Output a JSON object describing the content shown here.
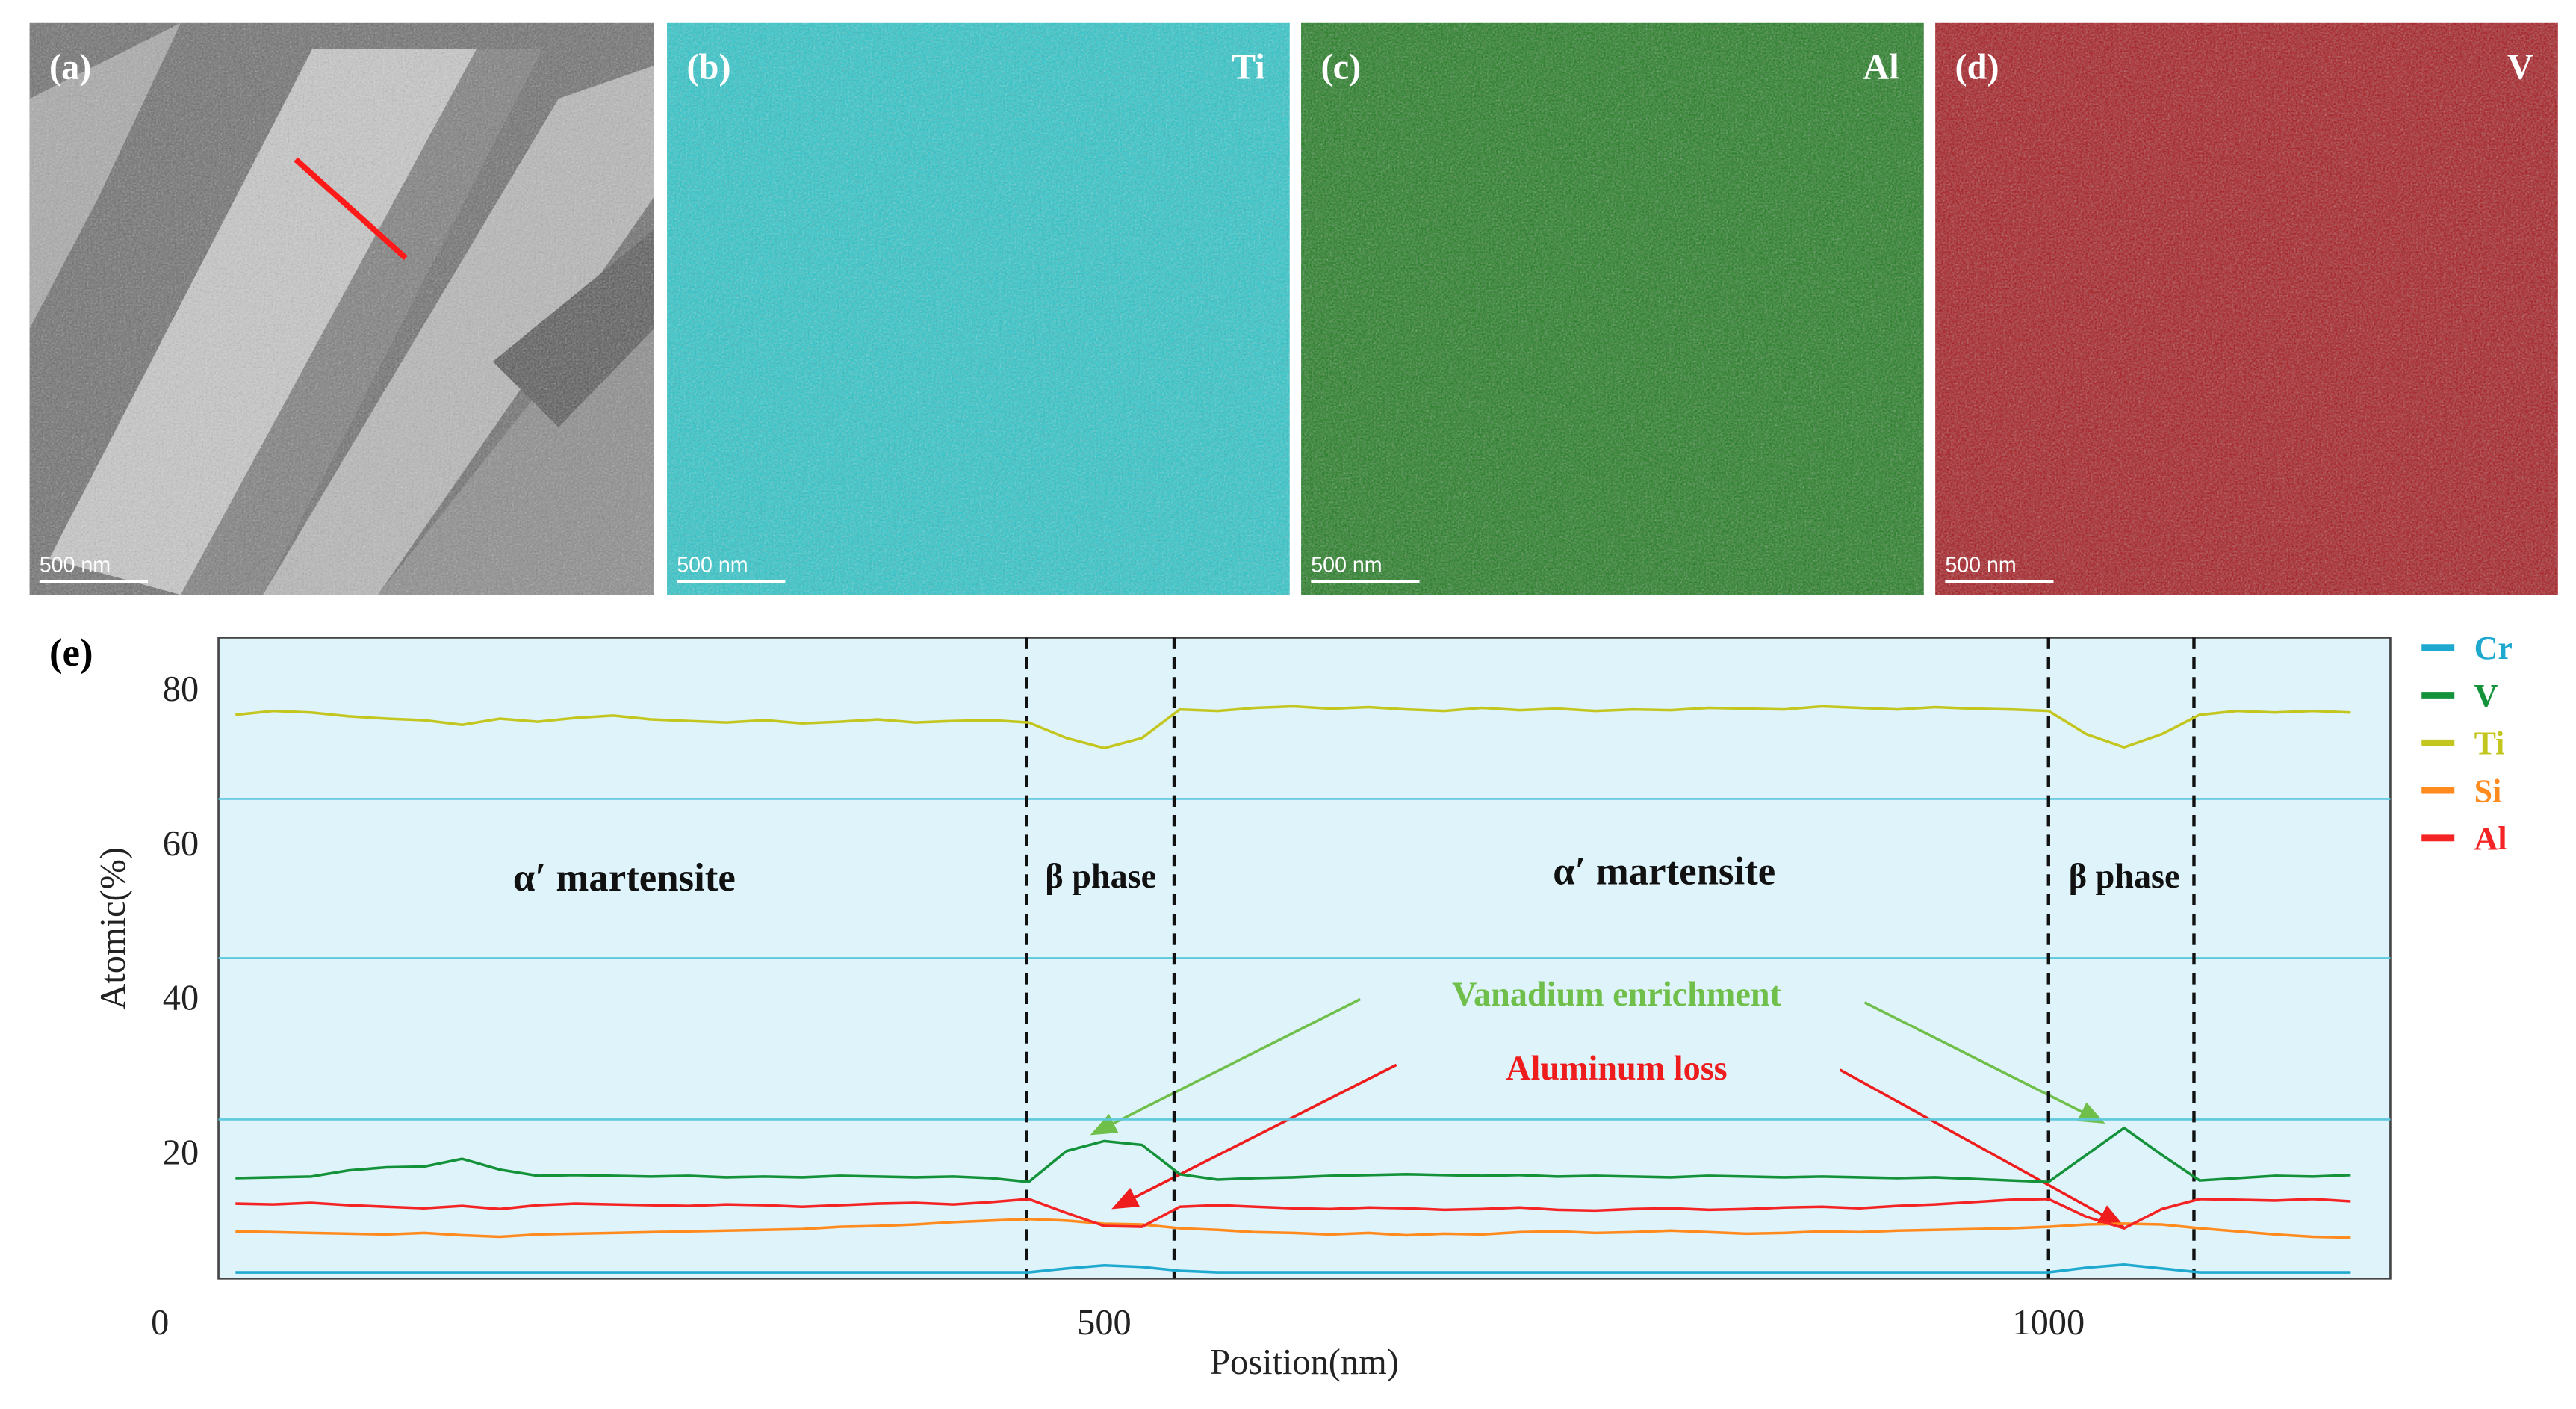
{
  "panels": [
    {
      "label": "(a)",
      "scale_bar": "500 nm"
    },
    {
      "label": "(b)",
      "element": "Ti",
      "scale_bar": "500 nm"
    },
    {
      "label": "(c)",
      "element": "Al",
      "scale_bar": "500 nm"
    },
    {
      "label": "(d)",
      "element": "V",
      "scale_bar": "500 nm"
    }
  ],
  "chart_data": {
    "type": "line",
    "panel_label": "(e)",
    "xlabel": "Position(nm)",
    "ylabel": "Atomic(%)",
    "xlim": [
      31,
      1181
    ],
    "ylim": [
      3.5,
      86.5
    ],
    "xticks": [
      0,
      500,
      1000
    ],
    "yticks": [
      20,
      40,
      60,
      80
    ],
    "grid_lines": [
      65.6,
      45,
      24.1
    ],
    "phase_boundaries": [
      459,
      537,
      1000,
      1077
    ],
    "legend": "right",
    "annotations": [
      {
        "text": "α′ martensite",
        "color": "#111111"
      },
      {
        "text": "β phase",
        "color": "#111111"
      },
      {
        "text": "α′ martensite",
        "color": "#111111"
      },
      {
        "text": "β phase",
        "color": "#111111"
      },
      {
        "text": "Vanadium enrichment",
        "color": "#6fbf4a"
      },
      {
        "text": "Aluminum loss",
        "color": "#ee1c1c"
      }
    ],
    "x": [
      40,
      60,
      80,
      100,
      120,
      140,
      160,
      180,
      200,
      220,
      240,
      260,
      280,
      300,
      320,
      340,
      360,
      380,
      400,
      420,
      440,
      460,
      480,
      500,
      520,
      540,
      560,
      580,
      600,
      620,
      640,
      660,
      680,
      700,
      720,
      740,
      760,
      780,
      800,
      820,
      840,
      860,
      880,
      900,
      920,
      940,
      960,
      980,
      1000,
      1020,
      1040,
      1060,
      1080,
      1100,
      1120,
      1140,
      1160
    ],
    "series": [
      {
        "name": "Cr",
        "color": "#1fa9cf",
        "values": [
          4.3,
          4.3,
          4.3,
          4.3,
          4.3,
          4.3,
          4.3,
          4.3,
          4.3,
          4.3,
          4.3,
          4.3,
          4.3,
          4.3,
          4.3,
          4.3,
          4.3,
          4.3,
          4.3,
          4.3,
          4.3,
          4.3,
          4.8,
          5.2,
          5.0,
          4.5,
          4.3,
          4.3,
          4.3,
          4.3,
          4.3,
          4.3,
          4.3,
          4.3,
          4.3,
          4.3,
          4.3,
          4.3,
          4.3,
          4.3,
          4.3,
          4.3,
          4.3,
          4.3,
          4.3,
          4.3,
          4.3,
          4.3,
          4.3,
          4.9,
          5.3,
          4.8,
          4.3,
          4.3,
          4.3,
          4.3,
          4.3
        ]
      },
      {
        "name": "V",
        "color": "#13923a",
        "values": [
          16.5,
          16.6,
          16.7,
          17.5,
          17.9,
          18,
          19,
          17.6,
          16.8,
          16.9,
          16.8,
          16.7,
          16.8,
          16.6,
          16.7,
          16.6,
          16.8,
          16.7,
          16.6,
          16.7,
          16.5,
          16.0,
          20,
          21.3,
          20.8,
          17,
          16.3,
          16.5,
          16.6,
          16.8,
          16.9,
          17,
          16.9,
          16.8,
          16.9,
          16.7,
          16.8,
          16.7,
          16.6,
          16.8,
          16.7,
          16.6,
          16.7,
          16.6,
          16.5,
          16.6,
          16.4,
          16.2,
          16,
          19.5,
          23,
          19.5,
          16.2,
          16.5,
          16.8,
          16.7,
          16.9
        ]
      },
      {
        "name": "Ti",
        "color": "#c4c620",
        "values": [
          76.5,
          77,
          76.8,
          76.3,
          76,
          75.8,
          75.2,
          76,
          75.6,
          76.1,
          76.4,
          75.9,
          75.7,
          75.5,
          75.8,
          75.4,
          75.6,
          75.9,
          75.5,
          75.7,
          75.8,
          75.5,
          73.5,
          72.2,
          73.5,
          77.2,
          77,
          77.4,
          77.6,
          77.3,
          77.5,
          77.2,
          77,
          77.4,
          77.1,
          77.3,
          77,
          77.2,
          77.1,
          77.4,
          77.3,
          77.2,
          77.6,
          77.4,
          77.2,
          77.5,
          77.3,
          77.2,
          77,
          74,
          72.3,
          74,
          76.5,
          77,
          76.8,
          77,
          76.8
        ]
      },
      {
        "name": "Si",
        "color": "#ff8a1e",
        "values": [
          9.6,
          9.5,
          9.4,
          9.3,
          9.2,
          9.4,
          9.1,
          8.9,
          9.2,
          9.3,
          9.4,
          9.5,
          9.6,
          9.7,
          9.8,
          9.9,
          10.2,
          10.3,
          10.5,
          10.8,
          11,
          11.2,
          11,
          10.6,
          10.5,
          10,
          9.8,
          9.5,
          9.4,
          9.2,
          9.4,
          9.1,
          9.3,
          9.2,
          9.5,
          9.6,
          9.4,
          9.5,
          9.7,
          9.5,
          9.3,
          9.4,
          9.6,
          9.5,
          9.7,
          9.8,
          9.9,
          10,
          10.2,
          10.5,
          10.6,
          10.5,
          10,
          9.6,
          9.2,
          8.9,
          8.8
        ]
      },
      {
        "name": "Al",
        "color": "#f42424",
        "values": [
          13.2,
          13.1,
          13.3,
          13,
          12.8,
          12.6,
          12.9,
          12.5,
          13,
          13.2,
          13.1,
          13,
          12.9,
          13.1,
          13,
          12.8,
          13,
          13.2,
          13.3,
          13.1,
          13.4,
          13.8,
          12,
          10.3,
          10.2,
          12.8,
          13,
          12.8,
          12.6,
          12.5,
          12.7,
          12.6,
          12.4,
          12.5,
          12.7,
          12.4,
          12.3,
          12.5,
          12.6,
          12.4,
          12.5,
          12.7,
          12.8,
          12.6,
          12.9,
          13.1,
          13.4,
          13.7,
          13.8,
          11.5,
          10,
          12.5,
          13.8,
          13.7,
          13.6,
          13.8,
          13.5
        ]
      }
    ]
  }
}
